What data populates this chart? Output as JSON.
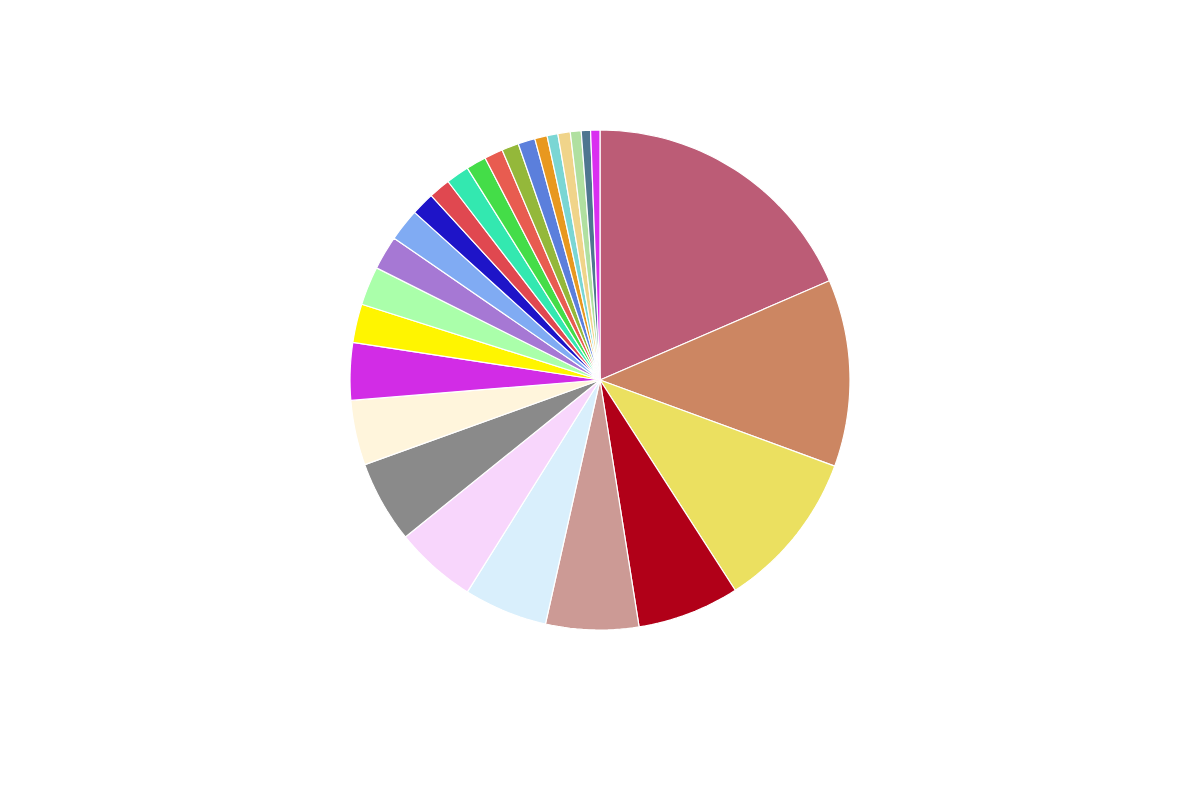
{
  "chart_data": {
    "type": "pie",
    "categories": [
      null,
      null,
      null,
      null,
      null,
      null,
      null,
      null,
      null,
      null,
      null,
      null,
      null,
      null,
      null,
      null,
      null,
      null,
      null,
      null,
      null,
      null,
      null,
      null,
      null,
      null,
      null
    ],
    "values": [
      18.5,
      12.1,
      10.3,
      6.6,
      6.0,
      5.4,
      5.3,
      5.3,
      4.2,
      3.7,
      2.5,
      2.5,
      2.2,
      2.1,
      1.5,
      1.4,
      1.5,
      1.3,
      1.2,
      1.1,
      1.1,
      0.8,
      0.7,
      0.8,
      0.7,
      0.6,
      0.6
    ],
    "colors": [
      "#bc5c76",
      "#cc8662",
      "#ebe060",
      "#b10018",
      "#cc9a95",
      "#d9effc",
      "#f8d6fc",
      "#8a8a8a",
      "#fff5dc",
      "#d22ce6",
      "#fff500",
      "#aaffaa",
      "#a678d4",
      "#80abf3",
      "#1e14c8",
      "#e04850",
      "#33e8b0",
      "#44dd48",
      "#e85c50",
      "#94b83a",
      "#5b7fdc",
      "#e8981f",
      "#7ad6d4",
      "#f0d48a",
      "#b0e0a0",
      "#4f7690",
      "#d92ef0"
    ]
  }
}
